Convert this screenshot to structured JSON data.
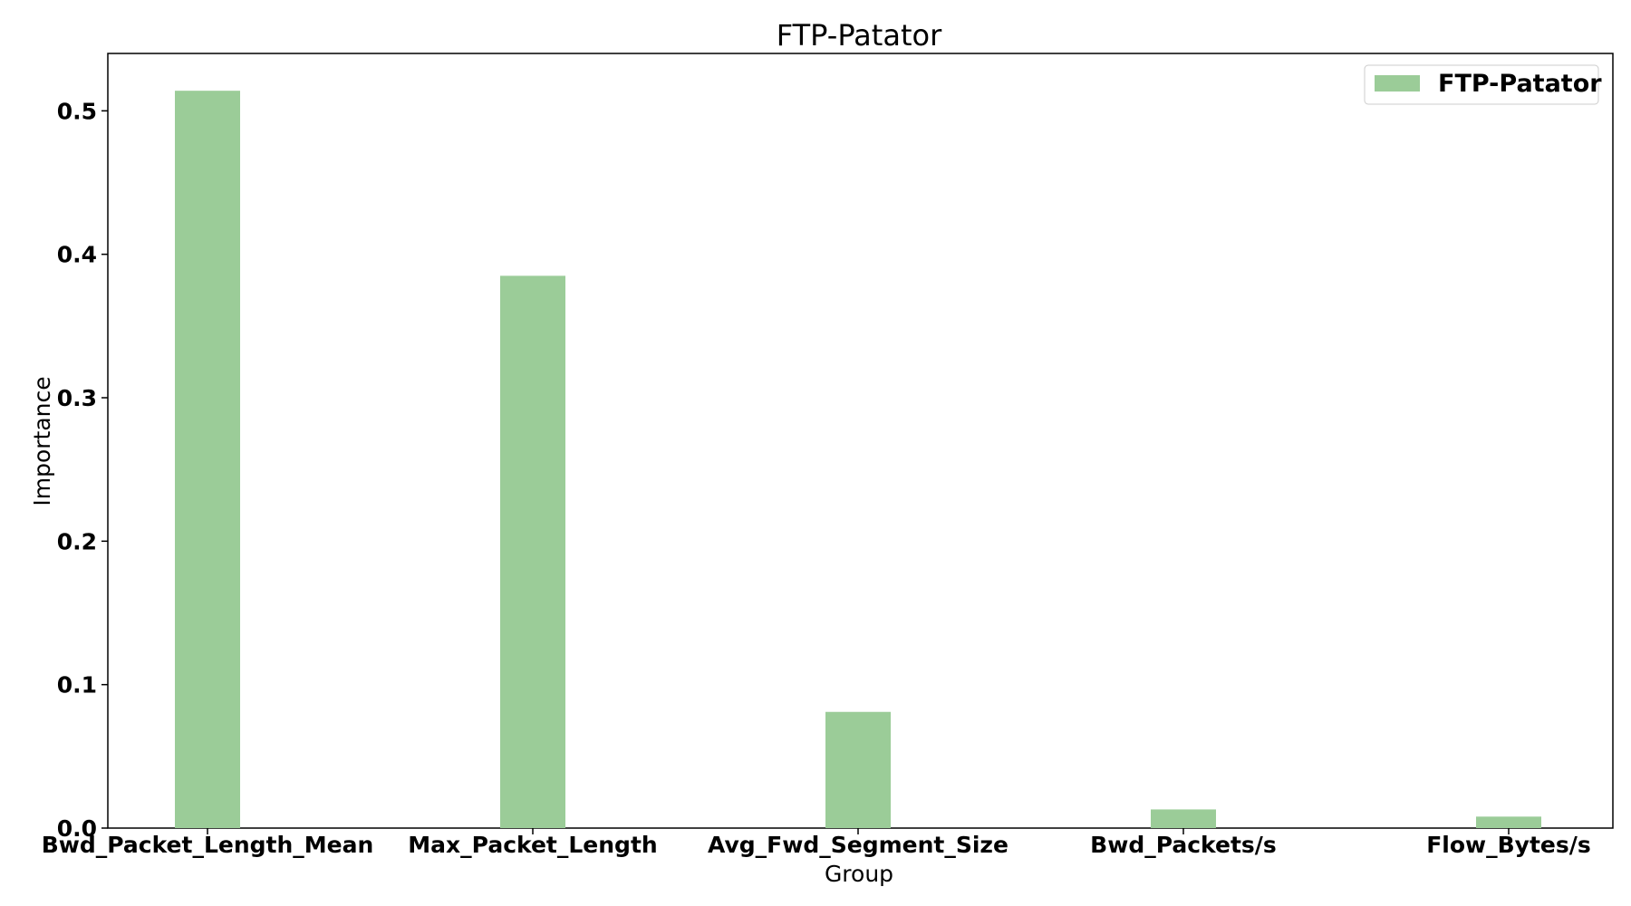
{
  "chart_data": {
    "type": "bar",
    "title": "FTP-Patator",
    "xlabel": "Group",
    "ylabel": "Importance",
    "categories": [
      "Bwd_Packet_Length_Mean",
      "Max_Packet_Length",
      "Avg_Fwd_Segment_Size",
      "Bwd_Packets/s",
      "Flow_Bytes/s"
    ],
    "series": [
      {
        "name": "FTP-Patator",
        "values": [
          0.514,
          0.385,
          0.081,
          0.013,
          0.008
        ],
        "color": "#9bcc98"
      }
    ],
    "ylim": [
      0,
      0.54
    ],
    "yticks": [
      "0.0",
      "0.1",
      "0.2",
      "0.3",
      "0.4",
      "0.5"
    ],
    "grid": false,
    "legend_position": "top-right"
  }
}
